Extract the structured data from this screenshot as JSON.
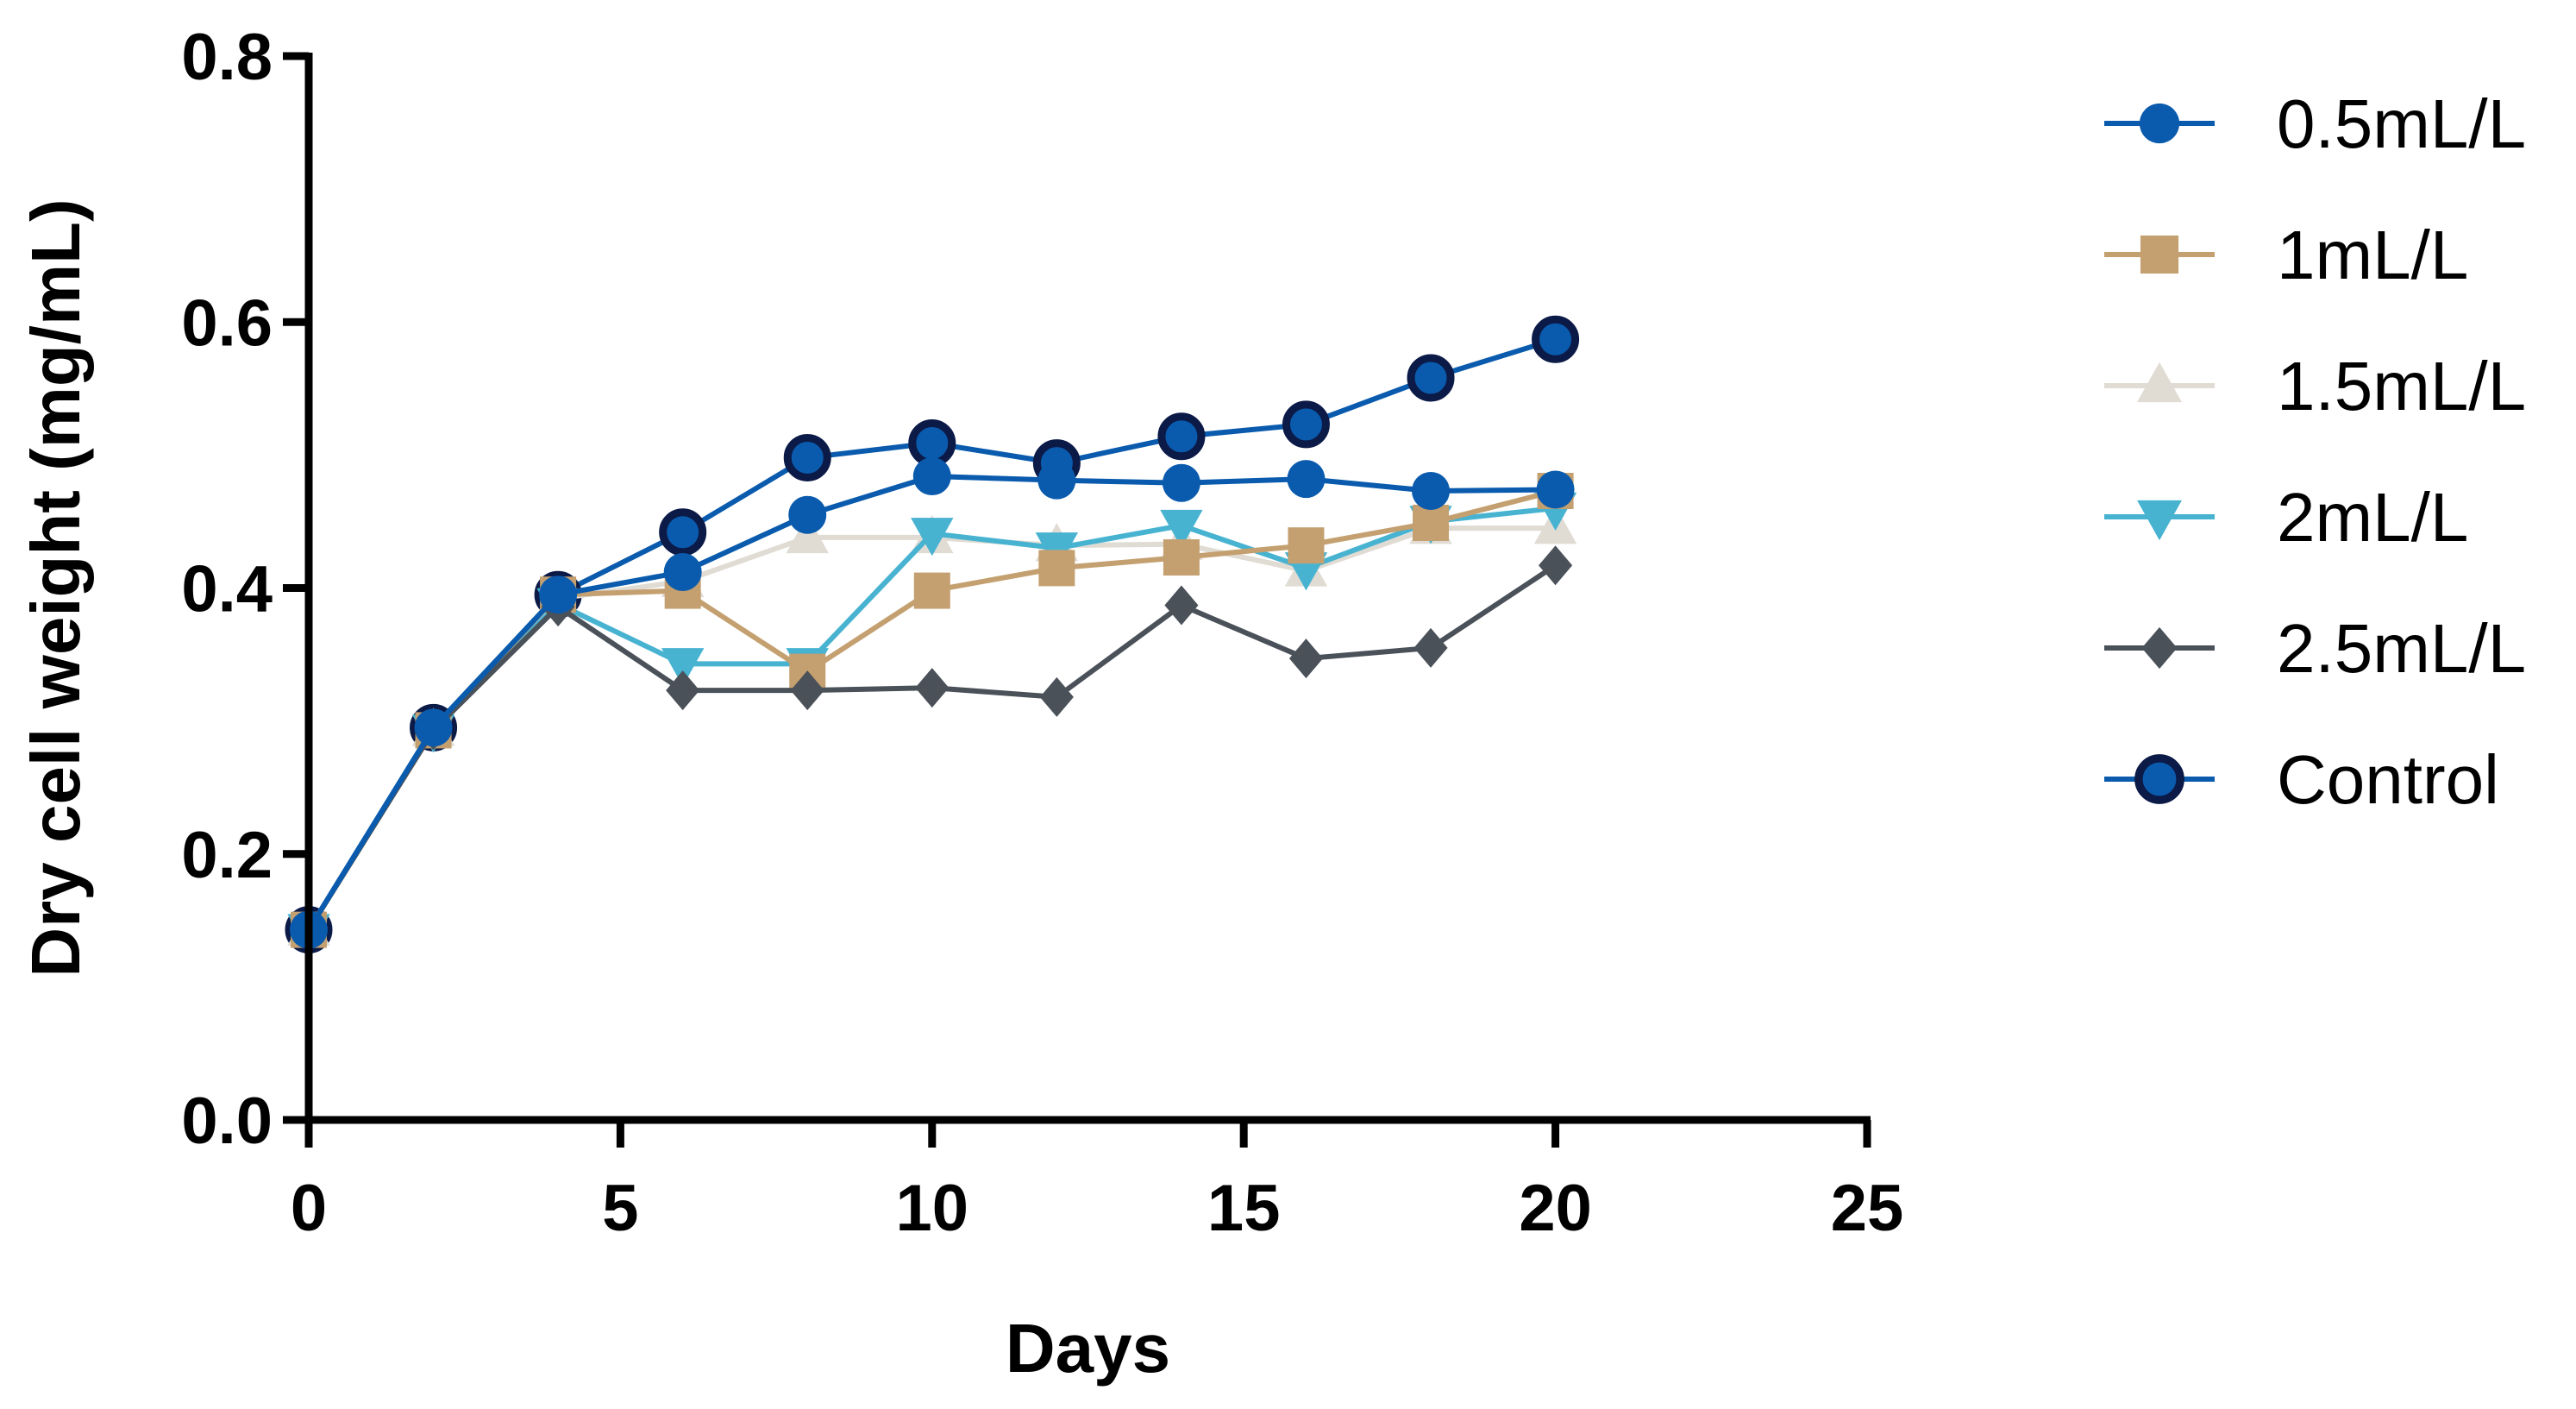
{
  "chart_data": {
    "type": "line",
    "title": "",
    "xlabel": "Days",
    "ylabel": "Dry cell weight (mg/mL)",
    "xlim": [
      0,
      25
    ],
    "ylim": [
      0,
      0.8
    ],
    "xticks": [
      0,
      5,
      10,
      15,
      20,
      25
    ],
    "yticks": [
      0.0,
      0.2,
      0.4,
      0.6,
      0.8
    ],
    "xtick_labels": [
      "0",
      "5",
      "10",
      "15",
      "20",
      "25"
    ],
    "ytick_labels": [
      "0.0",
      "0.2",
      "0.4",
      "0.6",
      "0.8"
    ],
    "grid": false,
    "legend_position": "right",
    "x": [
      0,
      2,
      4,
      6,
      8,
      10,
      12,
      14,
      16,
      18,
      20
    ],
    "series": [
      {
        "name": "Control",
        "marker": "circle-bold",
        "color": "#0a5bad",
        "edge_color": "#0b1a47",
        "values": [
          0.143,
          0.295,
          0.395,
          0.442,
          0.498,
          0.509,
          0.494,
          0.514,
          0.523,
          0.558,
          0.587
        ]
      },
      {
        "name": "1.5mL/L",
        "marker": "triangle-up",
        "color": "#e0dcd4",
        "edge_color": "#e0dcd4",
        "values": [
          0.143,
          0.293,
          0.392,
          0.405,
          0.438,
          0.438,
          0.432,
          0.433,
          0.413,
          0.445,
          0.445
        ]
      },
      {
        "name": "2mL/L",
        "marker": "triangle-down",
        "color": "#47b3d1",
        "edge_color": "#47b3d1",
        "values": [
          0.143,
          0.293,
          0.388,
          0.343,
          0.343,
          0.441,
          0.43,
          0.447,
          0.415,
          0.45,
          0.46
        ]
      },
      {
        "name": "1mL/L",
        "marker": "square",
        "color": "#c4a070",
        "edge_color": "#c4a070",
        "values": [
          0.143,
          0.293,
          0.395,
          0.398,
          0.337,
          0.398,
          0.415,
          0.423,
          0.432,
          0.449,
          0.473
        ]
      },
      {
        "name": "2.5mL/L",
        "marker": "diamond",
        "color": "#4b5159",
        "edge_color": "#4b5159",
        "values": [
          0.143,
          0.293,
          0.386,
          0.323,
          0.323,
          0.325,
          0.318,
          0.387,
          0.347,
          0.355,
          0.417
        ]
      },
      {
        "name": "0.5mL/L",
        "marker": "circle",
        "color": "#0a5bad",
        "edge_color": "#0a5bad",
        "values": [
          0.143,
          0.295,
          0.395,
          0.412,
          0.455,
          0.484,
          0.481,
          0.479,
          0.482,
          0.473,
          0.474
        ]
      }
    ],
    "legend_order": [
      "0.5mL/L",
      "1mL/L",
      "1.5mL/L",
      "2mL/L",
      "2.5mL/L",
      "Control"
    ]
  }
}
